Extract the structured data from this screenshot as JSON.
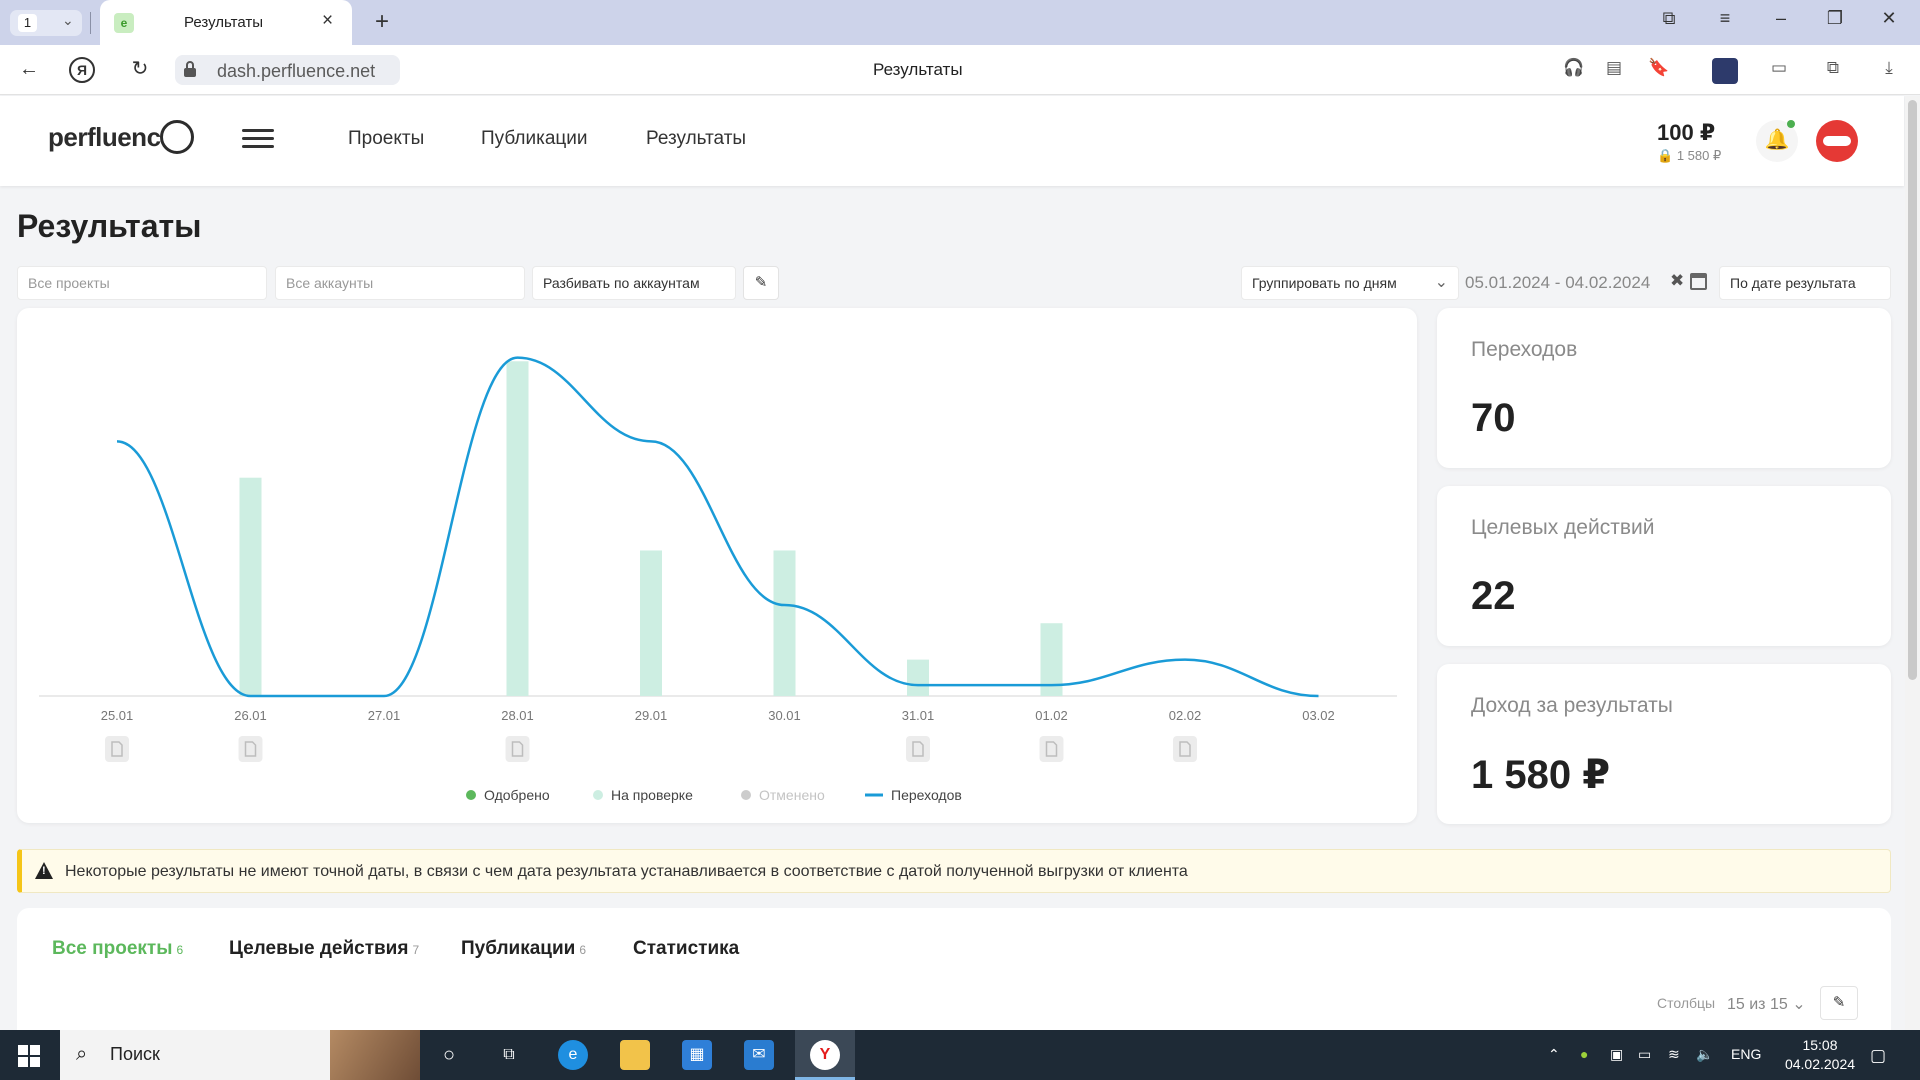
{
  "browser": {
    "tab_count": "1",
    "tab_title": "Результаты",
    "url": "dash.perfluence.net",
    "page_title": "Результаты"
  },
  "header": {
    "logo_text": "perfluenc",
    "menu": [
      "Проекты",
      "Публикации",
      "Результаты"
    ],
    "balance": "100 ₽",
    "balance_hold": "1 580 ₽"
  },
  "page": {
    "title": "Результаты",
    "filters": {
      "projects_placeholder": "Все проекты",
      "accounts_placeholder": "Все аккаунты",
      "split_by": "Разбивать по аккаунтам",
      "group_by": "Группировать по дням",
      "date_range": "05.01.2024 - 04.02.2024",
      "sort_by": "По дате результата"
    }
  },
  "stats": [
    {
      "label": "Переходов",
      "value": "70"
    },
    {
      "label": "Целевых действий",
      "value": "22"
    },
    {
      "label": "Доход за результаты",
      "value": "1 580 ₽"
    }
  ],
  "chart_data": {
    "type": "bar",
    "categories": [
      "25.01",
      "26.01",
      "27.01",
      "28.01",
      "29.01",
      "30.01",
      "31.01",
      "01.02",
      "02.02",
      "03.02"
    ],
    "series": [
      {
        "name": "Одобрено",
        "values": [
          0,
          0,
          0,
          0,
          0,
          0,
          0,
          0,
          0,
          0
        ]
      },
      {
        "name": "На проверке",
        "values": [
          0,
          6,
          0,
          9.2,
          4,
          4,
          1,
          2,
          0,
          0
        ]
      },
      {
        "name": "Отменено",
        "values": [
          0,
          0,
          0,
          0,
          0,
          0,
          0,
          0,
          0,
          0
        ]
      },
      {
        "name": "Переходов",
        "type": "line",
        "values": [
          7,
          0,
          0,
          9.3,
          7,
          2.5,
          0.3,
          0.3,
          1,
          0
        ]
      }
    ],
    "legend": "bottom",
    "legend_colors": {
      "Одобрено": "#5cb85c",
      "На проверке": "#cdeee2",
      "Отменено": "#cccccc",
      "Переходов": "#1a9bd7"
    },
    "legend_muted": {
      "Отменено": true
    },
    "grid": false
  },
  "warning": {
    "text": "Некоторые результаты не имеют точной даты, в связи с чем дата результата устанавливается в соответствие с датой полученной выгрузки от клиента"
  },
  "tabs": [
    {
      "label": "Все проекты",
      "count": "6"
    },
    {
      "label": "Целевые действия",
      "count": "7"
    },
    {
      "label": "Публикации",
      "count": "6"
    },
    {
      "label": "Статистика",
      "count": ""
    }
  ],
  "columns": {
    "label": "Столбцы",
    "value": "15 из 15"
  },
  "taskbar": {
    "search_placeholder": "Поиск",
    "lang": "ENG",
    "time": "15:08",
    "date": "04.02.2024"
  },
  "colors": {
    "accent": "#5cb85c",
    "line": "#1a9bd7",
    "bar": "#cdeee2"
  }
}
